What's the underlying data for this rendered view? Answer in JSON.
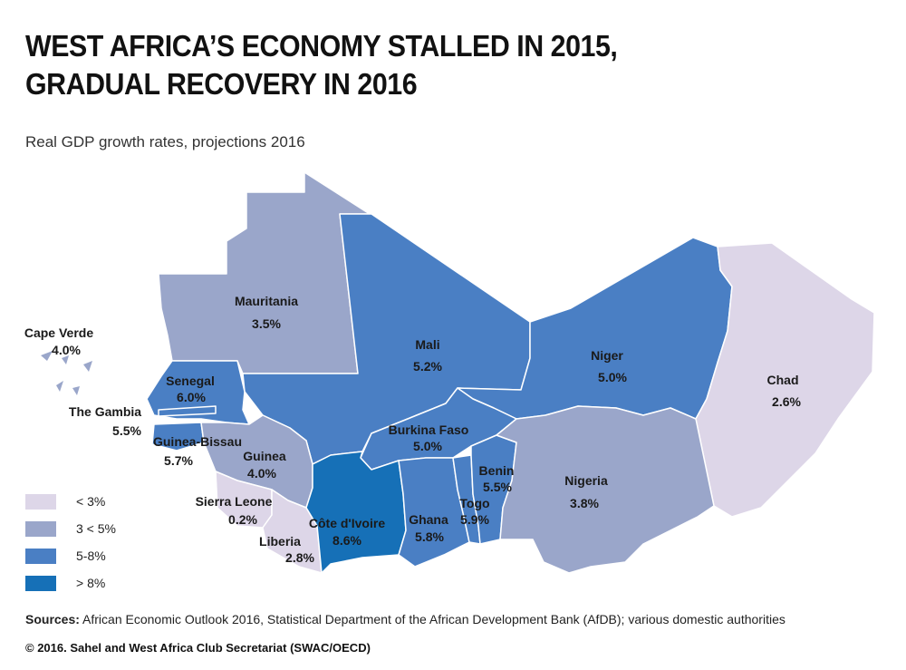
{
  "title_line1": "WEST AFRICA’S ECONOMY STALLED IN 2015,",
  "title_line2": "GRADUAL RECOVERY IN 2016",
  "subtitle": "Real GDP growth rates, projections 2016",
  "colors": {
    "lt3": "#ddd6e8",
    "c3to5": "#9aa6ca",
    "c5to8": "#4a7fc4",
    "gt8": "#1670b7",
    "border": "#ffffff"
  },
  "countries": [
    {
      "name": "Mauritania",
      "value": "3.5%",
      "class": "3 < 5%"
    },
    {
      "name": "Mali",
      "value": "5.2%",
      "class": "5-8%"
    },
    {
      "name": "Niger",
      "value": "5.0%",
      "class": "5-8%"
    },
    {
      "name": "Chad",
      "value": "2.6%",
      "class": "< 3%"
    },
    {
      "name": "Cape Verde",
      "value": "4.0%",
      "class": "3 < 5%"
    },
    {
      "name": "Senegal",
      "value": "6.0%",
      "class": "5-8%"
    },
    {
      "name": "The Gambia",
      "value": "5.5%",
      "class": "5-8%"
    },
    {
      "name": "Guinea-Bissau",
      "value": "5.7%",
      "class": "5-8%"
    },
    {
      "name": "Guinea",
      "value": "4.0%",
      "class": "3 < 5%"
    },
    {
      "name": "Burkina Faso",
      "value": "5.0%",
      "class": "5-8%"
    },
    {
      "name": "Benin",
      "value": "5.5%",
      "class": "5-8%"
    },
    {
      "name": "Nigeria",
      "value": "3.8%",
      "class": "3 < 5%"
    },
    {
      "name": "Sierra Leone",
      "value": "0.2%",
      "class": "< 3%"
    },
    {
      "name": "Côte d'Ivoire",
      "value": "8.6%",
      "class": "> 8%"
    },
    {
      "name": "Ghana",
      "value": "5.8%",
      "class": "5-8%"
    },
    {
      "name": "Togo",
      "value": "5.9%",
      "class": "5-8%"
    },
    {
      "name": "Liberia",
      "value": "2.8%",
      "class": "< 3%"
    }
  ],
  "legend": [
    {
      "label": "< 3%",
      "color": "#ddd6e8"
    },
    {
      "label": "3 < 5%",
      "color": "#9aa6ca"
    },
    {
      "label": "5-8%",
      "color": "#4a7fc4"
    },
    {
      "label": "> 8%",
      "color": "#1670b7"
    }
  ],
  "sources_label": "Sources:",
  "sources_text": "African Economic Outlook 2016, Statistical Department of the African Development Bank (AfDB); various domestic authorities",
  "copyright": "© 2016. Sahel and West Africa Club Secretariat (SWAC/OECD)"
}
